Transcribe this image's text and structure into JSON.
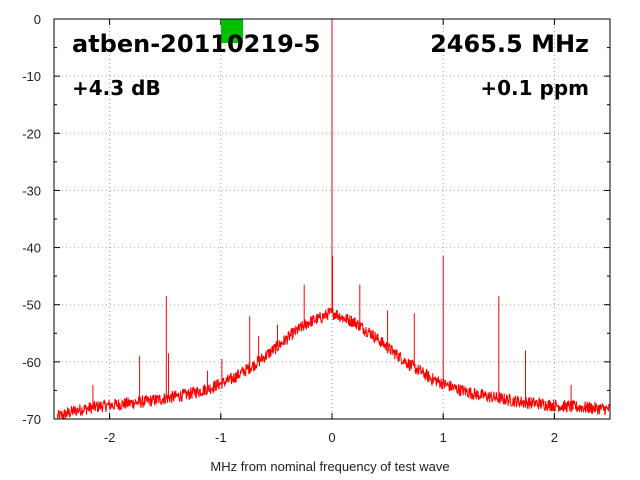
{
  "chart_data": {
    "type": "line",
    "title": "",
    "xlabel": "MHz from nominal frequency of test wave",
    "ylabel": "",
    "xlim": [
      -2.5,
      2.5
    ],
    "ylim": [
      -70,
      0
    ],
    "grid": true,
    "x_ticks": [
      -2,
      -1,
      0,
      1,
      2
    ],
    "y_ticks": [
      0,
      -10,
      -20,
      -30,
      -40,
      -50,
      -60,
      -70
    ],
    "series": [
      {
        "color": "#ff0000",
        "noise_floor_db": -66,
        "spectrum": [
          [
            -2.45,
            -69.5
          ],
          [
            -2.3,
            -68.5
          ],
          [
            -2.1,
            -67.8
          ],
          [
            -1.9,
            -67.4
          ],
          [
            -1.7,
            -67.0
          ],
          [
            -1.5,
            -66.4
          ],
          [
            -1.3,
            -65.7
          ],
          [
            -1.1,
            -64.6
          ],
          [
            -0.9,
            -63.0
          ],
          [
            -0.7,
            -60.5
          ],
          [
            -0.5,
            -57.5
          ],
          [
            -0.35,
            -55.0
          ],
          [
            -0.2,
            -53.0
          ],
          [
            -0.1,
            -52.3
          ],
          [
            -0.03,
            -51.5
          ],
          [
            0.03,
            -51.5
          ],
          [
            0.1,
            -52.3
          ],
          [
            0.2,
            -53.0
          ],
          [
            0.35,
            -55.0
          ],
          [
            0.5,
            -57.5
          ],
          [
            0.7,
            -60.5
          ],
          [
            0.9,
            -63.0
          ],
          [
            1.1,
            -64.6
          ],
          [
            1.3,
            -65.7
          ],
          [
            1.5,
            -66.4
          ],
          [
            1.7,
            -67.0
          ],
          [
            1.9,
            -67.4
          ],
          [
            2.1,
            -67.8
          ],
          [
            2.3,
            -68.0
          ],
          [
            2.48,
            -68.3
          ]
        ],
        "spurs": [
          [
            -2.15,
            -64.0
          ],
          [
            -1.73,
            -59.0
          ],
          [
            -1.49,
            -48.5
          ],
          [
            -1.47,
            -58.5
          ],
          [
            -1.12,
            -61.5
          ],
          [
            -0.99,
            -59.5
          ],
          [
            -0.74,
            -52.0
          ],
          [
            -0.66,
            -55.5
          ],
          [
            -0.49,
            -53.5
          ],
          [
            -0.25,
            -46.5
          ],
          [
            0.0,
            0.0
          ],
          [
            0.005,
            -41.5
          ],
          [
            0.25,
            -46.5
          ],
          [
            0.5,
            -51.0
          ],
          [
            0.74,
            -51.5
          ],
          [
            1.0,
            -41.5
          ],
          [
            1.5,
            -48.5
          ],
          [
            1.74,
            -58.0
          ],
          [
            2.15,
            -64.0
          ]
        ]
      }
    ],
    "annotations": {
      "device": "atben-20110219-5",
      "frequency": "2465.5 MHz",
      "gain": "+4.3 dB",
      "offset": "+0.1 ppm"
    },
    "marker_color": "#00c000"
  }
}
